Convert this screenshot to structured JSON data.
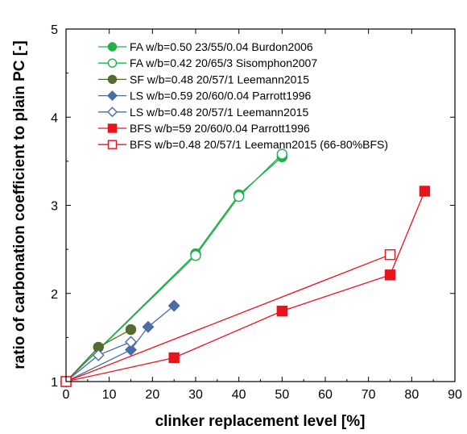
{
  "chart_data": {
    "type": "line",
    "title": "",
    "xlabel": "clinker replacement level [%]",
    "ylabel": "ratio of carbonation coefficient to plain PC [-]",
    "xlim": [
      0,
      90
    ],
    "ylim": [
      1,
      5
    ],
    "xticks": [
      0,
      10,
      20,
      30,
      40,
      50,
      60,
      70,
      80,
      90
    ],
    "yticks": [
      1,
      2,
      3,
      4,
      5
    ],
    "grid": false,
    "legend_position": "top-left",
    "series": [
      {
        "name": "FA w/b=0.50 23/55/0.04 Burdon2006",
        "color": "#22b04b",
        "marker": "circle",
        "filled": true,
        "x": [
          0,
          30,
          40,
          50
        ],
        "y": [
          1.0,
          2.45,
          3.12,
          3.55
        ]
      },
      {
        "name": "FA w/b=0.42 20/65/3 Sisomphon2007",
        "color": "#22b04b",
        "marker": "circle",
        "filled": false,
        "x": [
          0,
          30,
          40,
          50
        ],
        "y": [
          1.0,
          2.43,
          3.1,
          3.58
        ]
      },
      {
        "name": "SF w/b=0.48 20/57/1 Leemann2015",
        "color": "#556b2f",
        "marker": "circle",
        "filled": true,
        "x": [
          0,
          7.5,
          15
        ],
        "y": [
          1.0,
          1.39,
          1.59
        ]
      },
      {
        "name": "LS w/b=0.59 20/60/0.04 Parrott1996",
        "color": "#4a6da7",
        "marker": "diamond",
        "filled": true,
        "x": [
          0,
          15,
          19,
          25
        ],
        "y": [
          1.0,
          1.36,
          1.62,
          1.86
        ]
      },
      {
        "name": "LS w/b=0.48 20/57/1 Leemann2015",
        "color": "#4a6da7",
        "marker": "diamond",
        "filled": false,
        "x": [
          0,
          7.5,
          15
        ],
        "y": [
          1.0,
          1.3,
          1.45
        ]
      },
      {
        "name": "BFS w/b=59 20/60/0.04 Parrott1996",
        "color": "#e8141c",
        "marker": "square",
        "filled": true,
        "x": [
          0,
          25,
          50,
          75,
          83
        ],
        "y": [
          1.0,
          1.27,
          1.8,
          2.21,
          3.16
        ]
      },
      {
        "name": "BFS w/b=0.48 20/57/1 Leemann2015 (66-80%BFS)",
        "color": "#e8141c",
        "marker": "square",
        "filled": false,
        "x": [
          0,
          75
        ],
        "y": [
          1.0,
          2.44
        ]
      }
    ]
  }
}
